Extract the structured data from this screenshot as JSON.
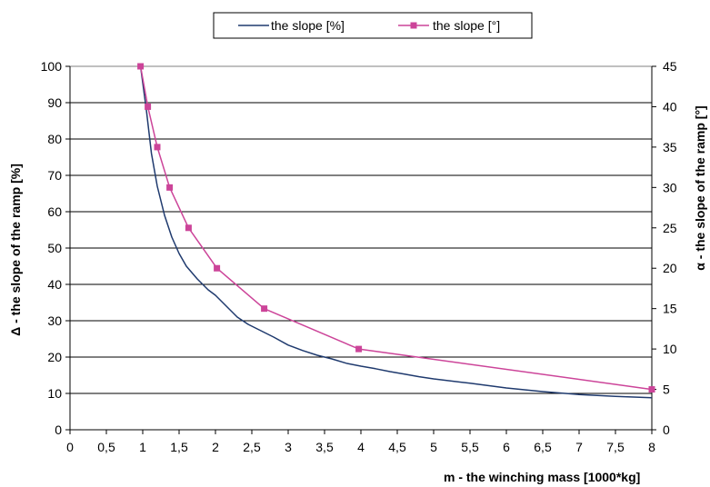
{
  "chart_data": {
    "type": "line",
    "title": "",
    "xlabel": "m - the winching mass [1000*kg]",
    "ylabel_left": "Δ - the slope of the ramp [%]",
    "ylabel_right": "α - the slope of the ramp [°]",
    "xlim": [
      0,
      8
    ],
    "ylim_left": [
      0,
      100
    ],
    "ylim_right": [
      0,
      45
    ],
    "x_ticks": [
      "0",
      "0,5",
      "1",
      "1,5",
      "2",
      "2,5",
      "3",
      "3,5",
      "4",
      "4,5",
      "5",
      "5,5",
      "6",
      "6,5",
      "7",
      "7,5",
      "8"
    ],
    "y_left_ticks": [
      "0",
      "10",
      "20",
      "30",
      "40",
      "50",
      "60",
      "70",
      "80",
      "90",
      "100"
    ],
    "y_right_ticks": [
      "0",
      "5",
      "10",
      "15",
      "20",
      "25",
      "30",
      "35",
      "40",
      "45"
    ],
    "grid": "horizontal",
    "legend_position": "top-center",
    "series": [
      {
        "name": "the slope [%]",
        "axis": "left",
        "color": "#1f3a6e",
        "marker": "none",
        "points": [
          [
            0.97,
            100
          ],
          [
            1.05,
            88
          ],
          [
            1.12,
            76
          ],
          [
            1.2,
            67
          ],
          [
            1.3,
            59
          ],
          [
            1.4,
            53
          ],
          [
            1.5,
            48.5
          ],
          [
            1.6,
            45
          ],
          [
            1.75,
            41.5
          ],
          [
            1.9,
            38.5
          ],
          [
            2.0,
            37
          ],
          [
            2.15,
            34
          ],
          [
            2.3,
            31
          ],
          [
            2.45,
            29
          ],
          [
            2.6,
            27.5
          ],
          [
            2.8,
            25.5
          ],
          [
            3.0,
            23.3
          ],
          [
            3.2,
            21.8
          ],
          [
            3.4,
            20.5
          ],
          [
            3.6,
            19.5
          ],
          [
            3.8,
            18.3
          ],
          [
            4.0,
            17.5
          ],
          [
            4.2,
            16.8
          ],
          [
            4.4,
            16
          ],
          [
            4.6,
            15.3
          ],
          [
            4.8,
            14.6
          ],
          [
            5.0,
            14
          ],
          [
            5.5,
            12.8
          ],
          [
            6.0,
            11.5
          ],
          [
            6.5,
            10.5
          ],
          [
            7.0,
            9.7
          ],
          [
            7.5,
            9.2
          ],
          [
            8.0,
            8.8
          ]
        ]
      },
      {
        "name": "the slope [°]",
        "axis": "right",
        "color": "#cc4499",
        "marker": "square",
        "points": [
          [
            0.97,
            45
          ],
          [
            1.07,
            40
          ],
          [
            1.2,
            35
          ],
          [
            1.37,
            30
          ],
          [
            1.63,
            25
          ],
          [
            2.02,
            20
          ],
          [
            2.67,
            15
          ],
          [
            3.97,
            10
          ],
          [
            8.0,
            5
          ]
        ]
      }
    ]
  }
}
